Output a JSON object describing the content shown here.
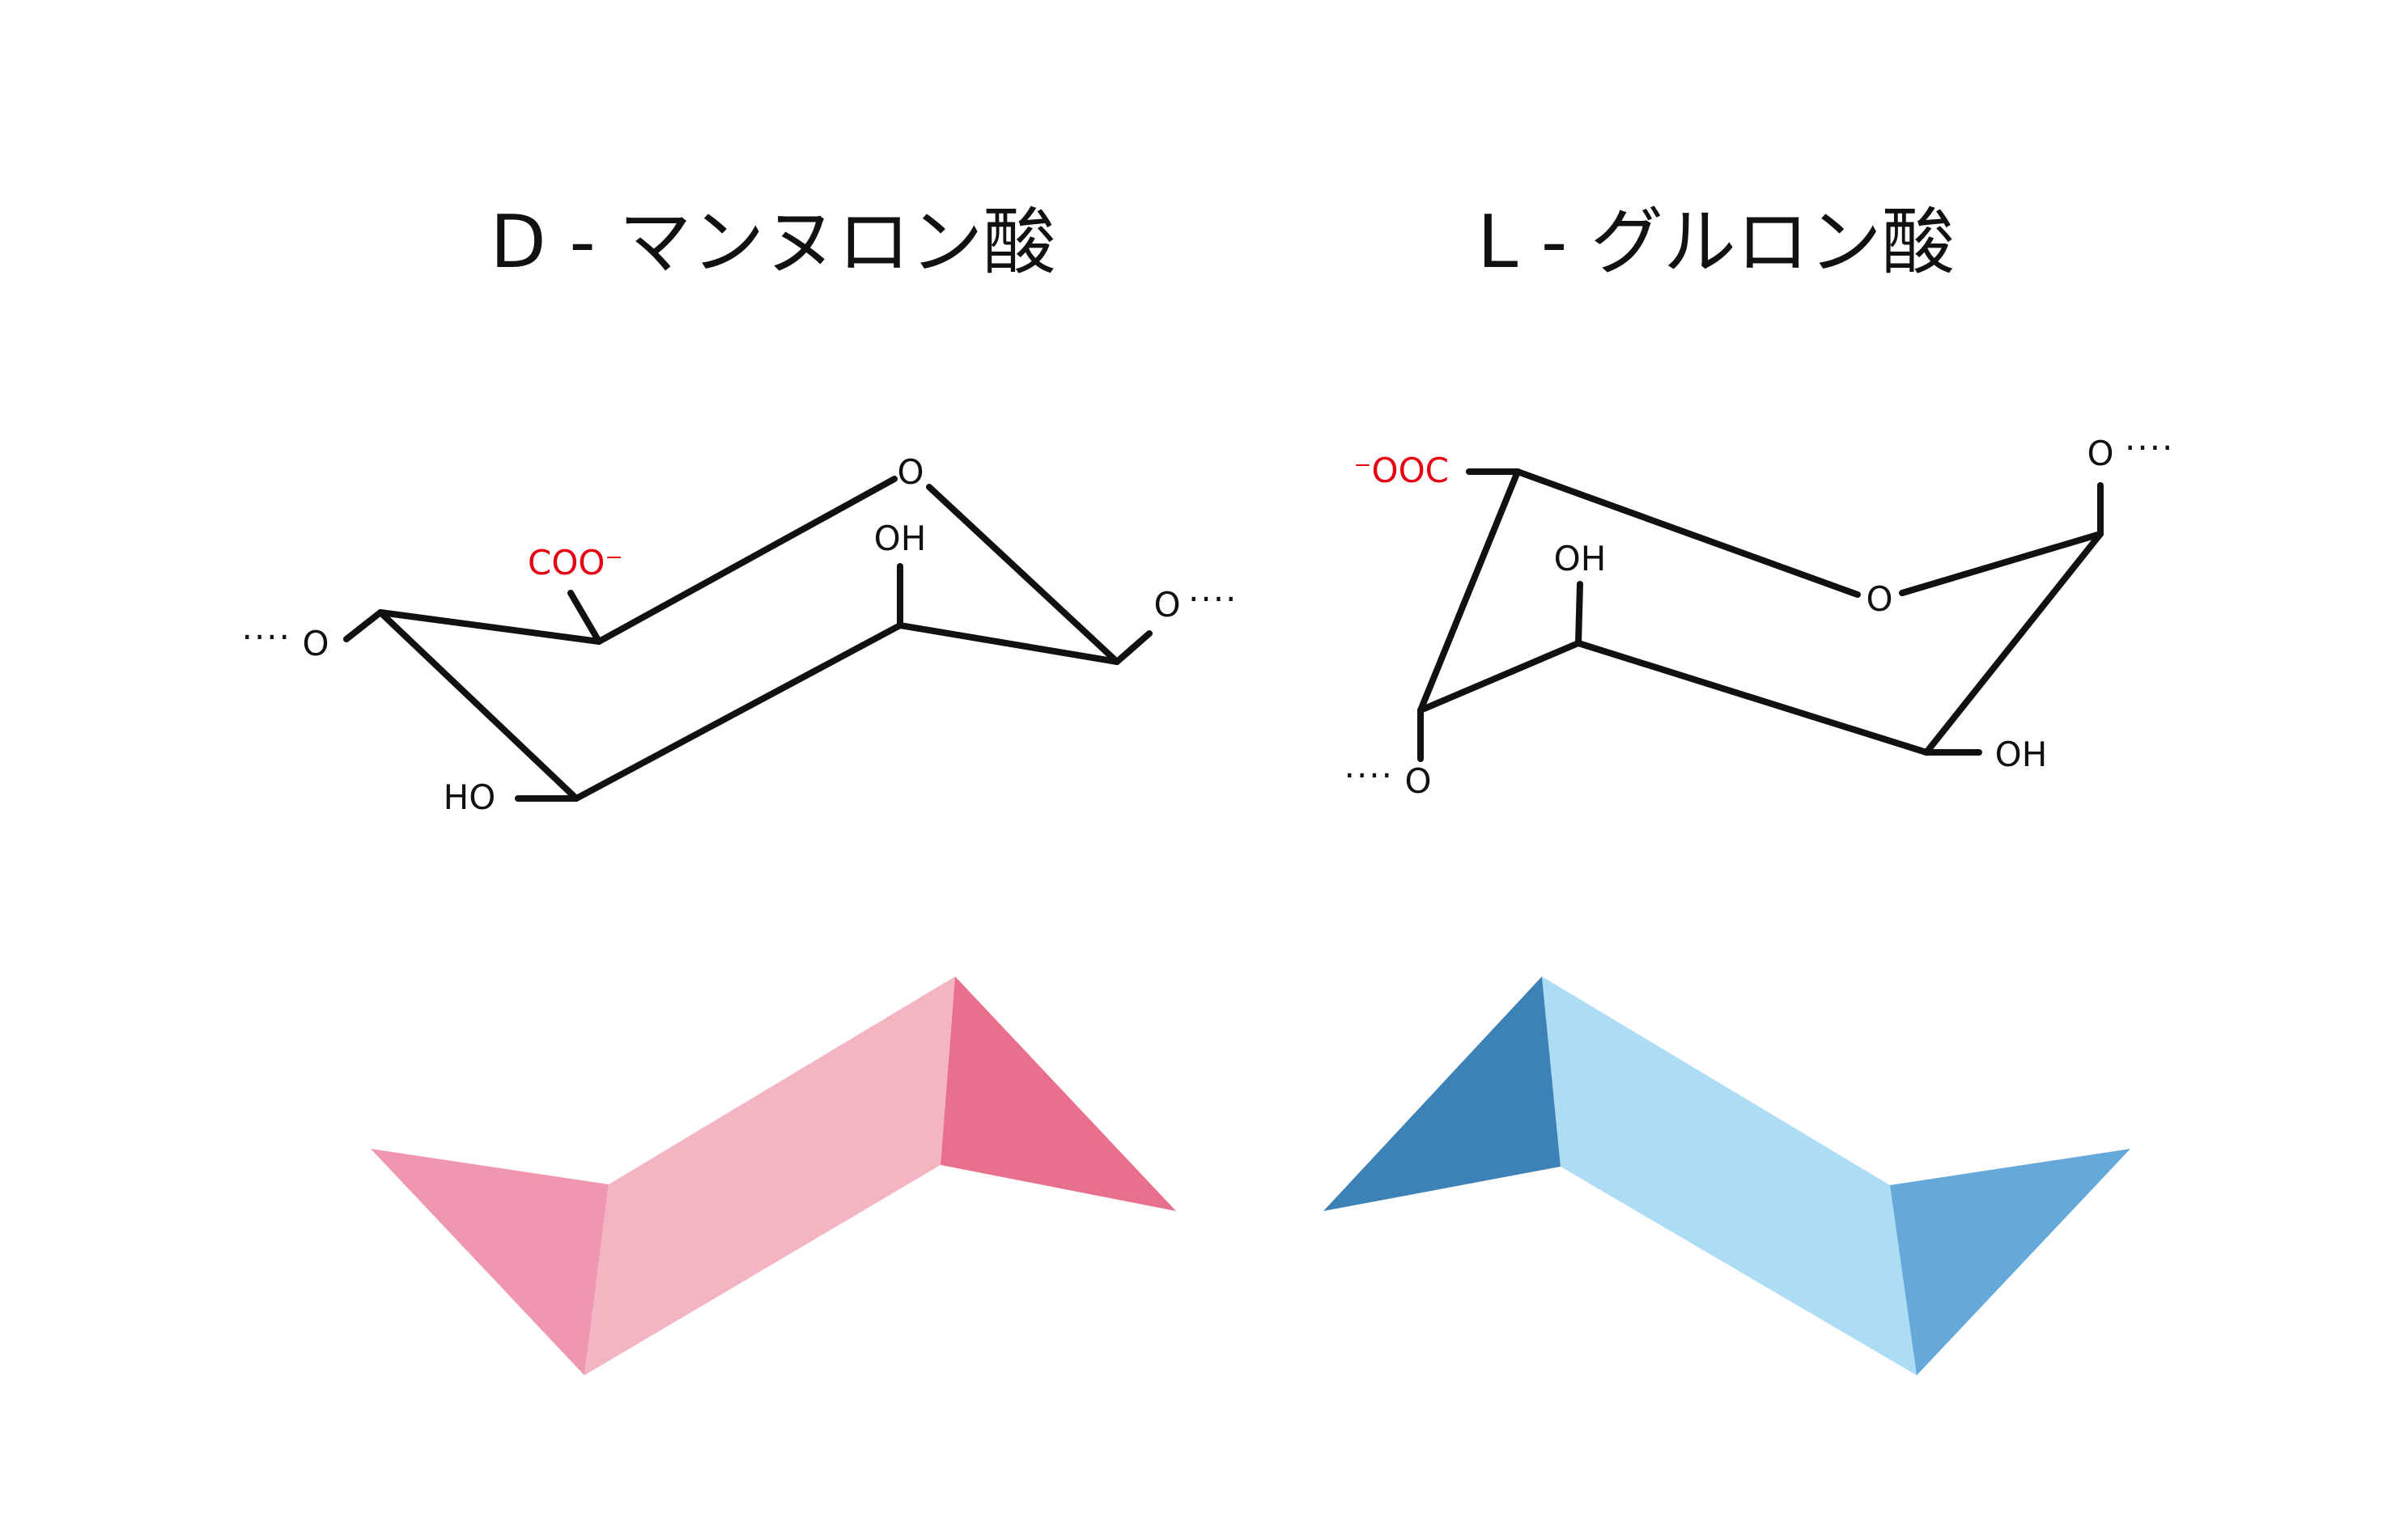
{
  "colors": {
    "ink": "#111111",
    "carboxylate": "#e60012",
    "mannuronic_light": "#f4b5c3",
    "mannuronic_mid": "#ef97af",
    "mannuronic_dark": "#e9708d",
    "guluronic_light": "#addcf5",
    "guluronic_mid": "#65a8da",
    "guluronic_dark": "#3c82b6"
  },
  "mannuronic": {
    "title": "D - マンヌロン酸",
    "ring_oxygen": "O",
    "carboxylate": "COO⁻",
    "hydroxyl_c2": "OH",
    "hydroxyl_c3": "HO",
    "glycosidic_left": "O",
    "glycosidic_right": "O",
    "dots_left": "····",
    "dots_right": "····"
  },
  "guluronic": {
    "title": "L - グルロン酸",
    "ring_oxygen": "O",
    "carboxylate": "⁻OOC",
    "hydroxyl_c3": "OH",
    "hydroxyl_c2": "OH",
    "glycosidic_top": "O",
    "glycosidic_bottom": "O",
    "dots_top": "····",
    "dots_bottom": "····"
  }
}
